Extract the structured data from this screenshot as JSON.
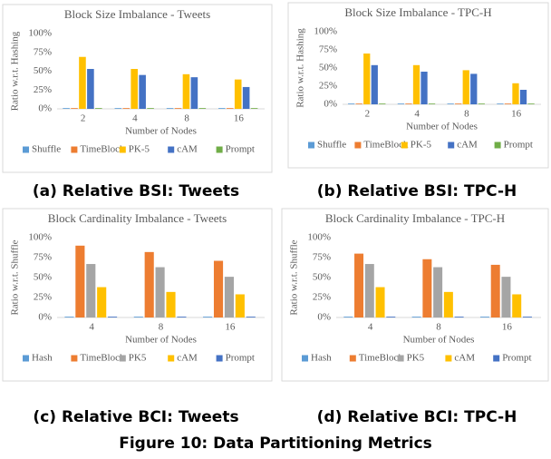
{
  "chart_data": [
    {
      "type": "bar",
      "title": "Block Size Imbalance - Tweets",
      "caption": "(a) Relative BSI: Tweets",
      "x_label": "Number of Nodes",
      "y_label": "Ratio w.r.t. Hashing",
      "categories": [
        "2",
        "4",
        "8",
        "16"
      ],
      "series": [
        {
          "name": "Shuffle",
          "color": "#5b9bd5",
          "values": [
            1,
            1,
            1,
            1
          ]
        },
        {
          "name": "TimeBlock",
          "color": "#ed7d31",
          "values": [
            1,
            1,
            1,
            1
          ]
        },
        {
          "name": "PK-5",
          "color": "#ffc000",
          "values": [
            69,
            53,
            46,
            39
          ]
        },
        {
          "name": "cAM",
          "color": "#4472c4",
          "values": [
            53,
            45,
            42,
            29
          ]
        },
        {
          "name": "Prompt",
          "color": "#70ad47",
          "values": [
            1,
            1,
            1,
            1
          ]
        }
      ],
      "ylim": [
        0,
        100
      ],
      "yticks": [
        {
          "value": 0,
          "label": "0%"
        },
        {
          "value": 25,
          "label": "25%"
        },
        {
          "value": 50,
          "label": "50%"
        },
        {
          "value": 75,
          "label": "75%"
        },
        {
          "value": 100,
          "label": "100%"
        }
      ],
      "grid": false
    },
    {
      "type": "bar",
      "title": "Block Size Imbalance - TPC-H",
      "caption": "(b) Relative BSI: TPC-H",
      "x_label": "Number of Nodes",
      "y_label": "Ratio w.r.t. Hashing",
      "categories": [
        "2",
        "4",
        "8",
        "16"
      ],
      "series": [
        {
          "name": "Shuffle",
          "color": "#5b9bd5",
          "values": [
            1,
            1,
            1,
            1
          ]
        },
        {
          "name": "TimeBlock",
          "color": "#ed7d31",
          "values": [
            1,
            1,
            1,
            1
          ]
        },
        {
          "name": "PK-5",
          "color": "#ffc000",
          "values": [
            70,
            54,
            47,
            29
          ]
        },
        {
          "name": "cAM",
          "color": "#4472c4",
          "values": [
            54,
            45,
            42,
            20
          ]
        },
        {
          "name": "Prompt",
          "color": "#70ad47",
          "values": [
            1,
            1,
            1,
            1
          ]
        }
      ],
      "ylim": [
        0,
        100
      ],
      "yticks": [
        {
          "value": 0,
          "label": "0%"
        },
        {
          "value": 25,
          "label": "25%"
        },
        {
          "value": 50,
          "label": "50%"
        },
        {
          "value": 75,
          "label": "75%"
        },
        {
          "value": 100,
          "label": "100%"
        }
      ],
      "grid": false
    },
    {
      "type": "bar",
      "title": "Block Cardinality Imbalance - Tweets",
      "caption": "(c) Relative BCI: Tweets",
      "x_label": "Number of Nodes",
      "y_label": "Ratio w.r.t. Shuffle",
      "categories": [
        "4",
        "8",
        "16"
      ],
      "series": [
        {
          "name": "Hash",
          "color": "#5b9bd5",
          "values": [
            1,
            1,
            1
          ]
        },
        {
          "name": "TimeBlock",
          "color": "#ed7d31",
          "values": [
            90,
            82,
            71
          ]
        },
        {
          "name": "PK5",
          "color": "#a5a5a5",
          "values": [
            67,
            63,
            51
          ]
        },
        {
          "name": "cAM",
          "color": "#ffc000",
          "values": [
            38,
            32,
            29
          ]
        },
        {
          "name": "Prompt",
          "color": "#4472c4",
          "values": [
            1,
            1,
            1
          ]
        }
      ],
      "ylim": [
        0,
        100
      ],
      "yticks": [
        {
          "value": 0,
          "label": "0%"
        },
        {
          "value": 25,
          "label": "25%"
        },
        {
          "value": 50,
          "label": "50%"
        },
        {
          "value": 75,
          "label": "75%"
        },
        {
          "value": 100,
          "label": "100%"
        }
      ],
      "grid": false
    },
    {
      "type": "bar",
      "title": "Block Cardinality Imbalance - TPC-H",
      "caption": "(d) Relative BCI: TPC-H",
      "x_label": "Number of Nodes",
      "y_label": "Ratio w.r.t. Shuffle",
      "categories": [
        "4",
        "8",
        "16"
      ],
      "series": [
        {
          "name": "Hash",
          "color": "#5b9bd5",
          "values": [
            1,
            1,
            1
          ]
        },
        {
          "name": "TimeBlock",
          "color": "#ed7d31",
          "values": [
            80,
            73,
            66
          ]
        },
        {
          "name": "PK5",
          "color": "#a5a5a5",
          "values": [
            67,
            63,
            51
          ]
        },
        {
          "name": "cAM",
          "color": "#ffc000",
          "values": [
            38,
            32,
            29
          ]
        },
        {
          "name": "Prompt",
          "color": "#4472c4",
          "values": [
            1,
            1,
            1
          ]
        }
      ],
      "ylim": [
        0,
        100
      ],
      "yticks": [
        {
          "value": 0,
          "label": "0%"
        },
        {
          "value": 25,
          "label": "25%"
        },
        {
          "value": 50,
          "label": "50%"
        },
        {
          "value": 75,
          "label": "75%"
        },
        {
          "value": 100,
          "label": "100%"
        }
      ],
      "grid": false
    }
  ],
  "figure_caption": "Figure 10: Data Partitioning Metrics"
}
